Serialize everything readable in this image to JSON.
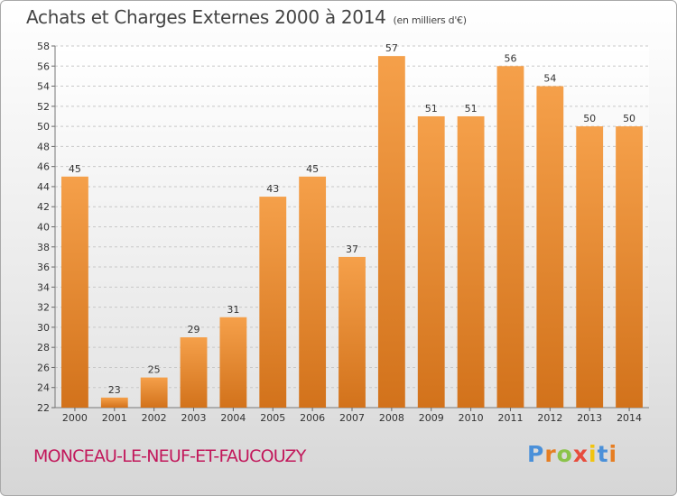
{
  "title": "Achats et Charges Externes 2000 à 2014",
  "subtitle": "(en milliers d'€)",
  "location": "MONCEAU-LE-NEUF-ET-FAUCOUZY",
  "logo": {
    "text": "Proxiti",
    "letter_colors": [
      "#4a90d9",
      "#e67e22",
      "#8bc34a",
      "#e74c3c",
      "#f1c40f",
      "#4a90d9",
      "#e67e22"
    ]
  },
  "chart_data": {
    "type": "bar",
    "categories": [
      "2000",
      "2001",
      "2002",
      "2003",
      "2004",
      "2005",
      "2006",
      "2007",
      "2008",
      "2009",
      "2010",
      "2011",
      "2012",
      "2013",
      "2014"
    ],
    "values": [
      45,
      23,
      25,
      29,
      31,
      43,
      45,
      37,
      57,
      51,
      51,
      56,
      54,
      50,
      50
    ],
    "ylim": [
      22,
      58
    ],
    "yticks": [
      22,
      24,
      26,
      28,
      30,
      32,
      34,
      36,
      38,
      40,
      42,
      44,
      46,
      48,
      50,
      52,
      54,
      56,
      58
    ],
    "grid": true,
    "bar_color_light": "#f5a04a",
    "bar_color_dark": "#d2721b"
  }
}
